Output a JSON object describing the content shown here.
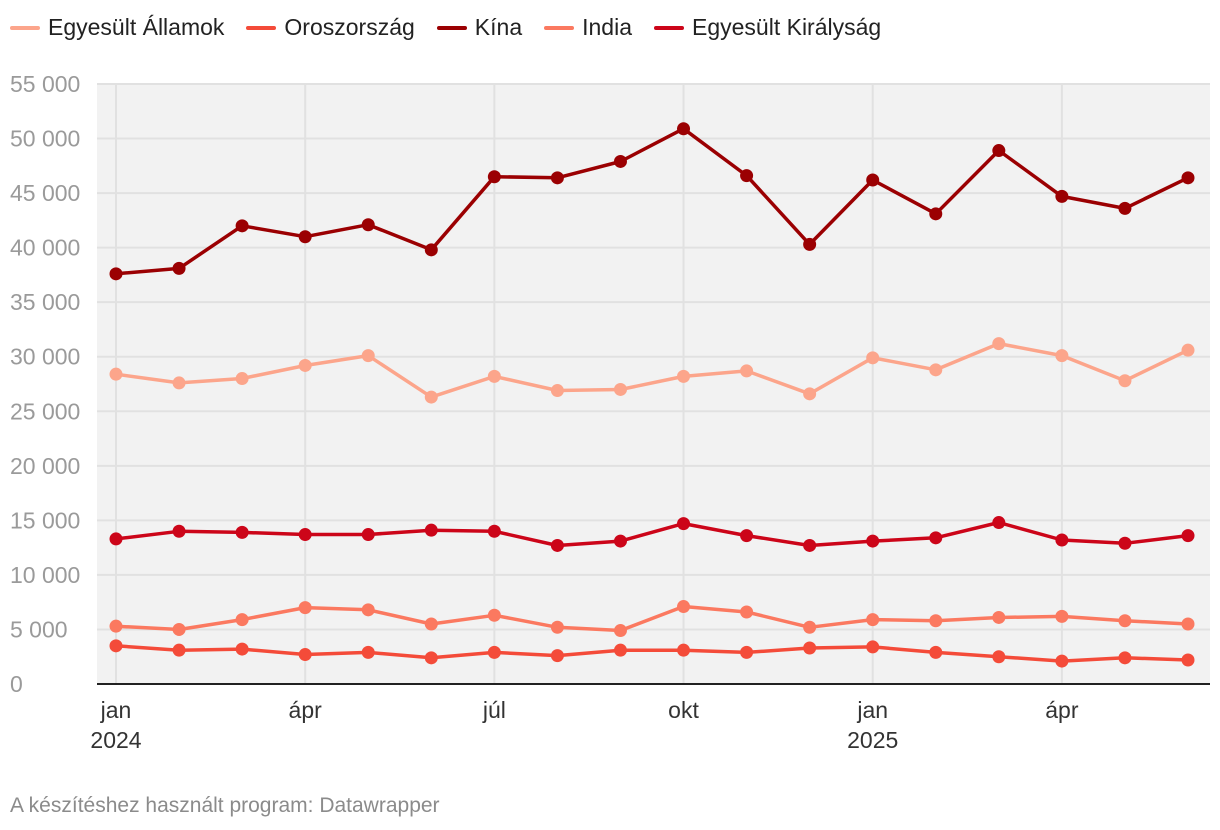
{
  "legend": [
    {
      "name": "Egyesült Államok",
      "color": "#fca58b"
    },
    {
      "name": "Oroszország",
      "color": "#f44b39"
    },
    {
      "name": "Kína",
      "color": "#9b0002"
    },
    {
      "name": "India",
      "color": "#fb7960"
    },
    {
      "name": "Egyesült Királyság",
      "color": "#cc0519"
    }
  ],
  "footer": {
    "source": "A készítéshez használt program: Datawrapper"
  },
  "chart_data": {
    "type": "line",
    "title": "",
    "xlabel": "",
    "ylabel": "",
    "ylim": [
      0,
      55000
    ],
    "yticks": [
      0,
      5000,
      10000,
      15000,
      20000,
      25000,
      30000,
      35000,
      40000,
      45000,
      50000,
      55000
    ],
    "ytick_labels": [
      "0",
      "5 000",
      "10 000",
      "15 000",
      "20 000",
      "25 000",
      "30 000",
      "35 000",
      "40 000",
      "45 000",
      "50 000",
      "55 000"
    ],
    "x": [
      "2024-01",
      "2024-02",
      "2024-03",
      "2024-04",
      "2024-05",
      "2024-06",
      "2024-07",
      "2024-08",
      "2024-09",
      "2024-10",
      "2024-11",
      "2024-12",
      "2025-01",
      "2025-02",
      "2025-03",
      "2025-04",
      "2025-05",
      "2025-06"
    ],
    "xticks": [
      {
        "index": 0,
        "label": "jan",
        "year": "2024"
      },
      {
        "index": 3,
        "label": "ápr",
        "year": ""
      },
      {
        "index": 6,
        "label": "júl",
        "year": ""
      },
      {
        "index": 9,
        "label": "okt",
        "year": ""
      },
      {
        "index": 12,
        "label": "jan",
        "year": "2025"
      },
      {
        "index": 15,
        "label": "ápr",
        "year": ""
      }
    ],
    "grid": true,
    "series": [
      {
        "name": "Egyesült Államok",
        "color": "#fca58b",
        "values": [
          28400,
          27600,
          28000,
          29200,
          30100,
          26300,
          28200,
          26900,
          27000,
          28200,
          28700,
          26600,
          29900,
          28800,
          31200,
          30100,
          27800,
          30600
        ]
      },
      {
        "name": "Oroszország",
        "color": "#f44b39",
        "values": [
          3500,
          3100,
          3200,
          2700,
          2900,
          2400,
          2900,
          2600,
          3100,
          3100,
          2900,
          3300,
          3400,
          2900,
          2500,
          2100,
          2400,
          2200
        ]
      },
      {
        "name": "Kína",
        "color": "#9b0002",
        "values": [
          37600,
          38100,
          42000,
          41000,
          42100,
          39800,
          46500,
          46400,
          47900,
          50900,
          46600,
          40300,
          46200,
          43100,
          48900,
          44700,
          43600,
          46400
        ]
      },
      {
        "name": "India",
        "color": "#fb7960",
        "values": [
          5300,
          5000,
          5900,
          7000,
          6800,
          5500,
          6300,
          5200,
          4900,
          7100,
          6600,
          5200,
          5900,
          5800,
          6100,
          6200,
          5800,
          5500
        ]
      },
      {
        "name": "Egyesült Királyság",
        "color": "#cc0519",
        "values": [
          13300,
          14000,
          13900,
          13700,
          13700,
          14100,
          14000,
          12700,
          13100,
          14700,
          13600,
          12700,
          13100,
          13400,
          14800,
          13200,
          12900,
          13600
        ]
      }
    ]
  }
}
